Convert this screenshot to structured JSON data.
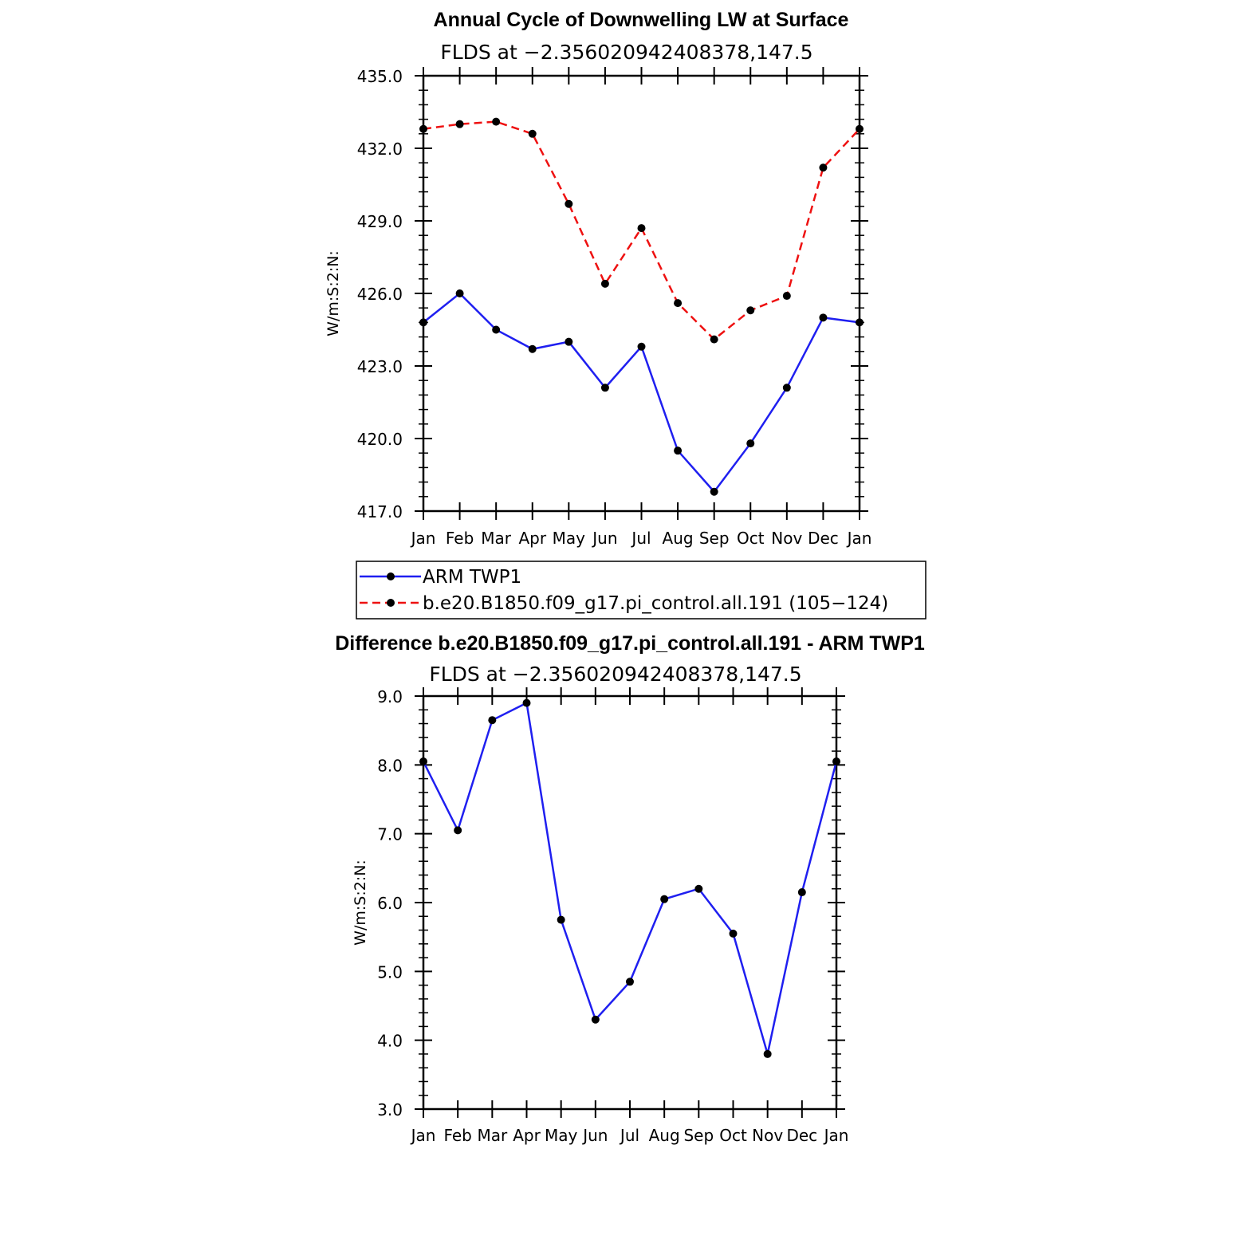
{
  "colors": {
    "obs": "#1f1ff0",
    "model": "#ee1111",
    "diff": "#1f1ff0",
    "axis": "#000000",
    "marker": "#000000"
  },
  "chart_data": [
    {
      "type": "line",
      "title": "Annual Cycle of Downwelling LW at Surface",
      "subtitle": "FLDS at −2.356020942408378,147.5",
      "ylabel": "W/m:S:2:N:",
      "xlabel": "",
      "categories": [
        "Jan",
        "Feb",
        "Mar",
        "Apr",
        "May",
        "Jun",
        "Jul",
        "Aug",
        "Sep",
        "Oct",
        "Nov",
        "Dec",
        "Jan"
      ],
      "ylim": [
        417.0,
        435.0
      ],
      "yticks": [
        "417.0",
        "420.0",
        "423.0",
        "426.0",
        "429.0",
        "432.0",
        "435.0"
      ],
      "legend_position": "below",
      "series": [
        {
          "name": "ARM TWP1",
          "style": "solid",
          "values": [
            424.8,
            426.0,
            424.5,
            423.7,
            424.0,
            422.1,
            423.8,
            419.5,
            417.8,
            419.8,
            422.1,
            425.0,
            424.8
          ]
        },
        {
          "name": "b.e20.B1850.f09_g17.pi_control.all.191 (105−124)",
          "style": "dashed",
          "values": [
            432.8,
            433.0,
            433.1,
            432.6,
            429.7,
            426.4,
            428.7,
            425.6,
            424.1,
            425.3,
            425.9,
            431.2,
            432.8
          ]
        }
      ]
    },
    {
      "type": "line",
      "title": "Difference b.e20.B1850.f09_g17.pi_control.all.191 - ARM TWP1",
      "subtitle": "FLDS at −2.356020942408378,147.5",
      "ylabel": "W/m:S:2:N:",
      "xlabel": "",
      "categories": [
        "Jan",
        "Feb",
        "Mar",
        "Apr",
        "May",
        "Jun",
        "Jul",
        "Aug",
        "Sep",
        "Oct",
        "Nov",
        "Dec",
        "Jan"
      ],
      "ylim": [
        3.0,
        9.0
      ],
      "yticks": [
        "3.0",
        "4.0",
        "5.0",
        "6.0",
        "7.0",
        "8.0",
        "9.0"
      ],
      "series": [
        {
          "style": "solid",
          "values": [
            8.05,
            7.05,
            8.65,
            8.9,
            5.75,
            4.3,
            4.85,
            6.05,
            6.2,
            5.55,
            3.8,
            6.15,
            8.05
          ]
        }
      ]
    }
  ]
}
